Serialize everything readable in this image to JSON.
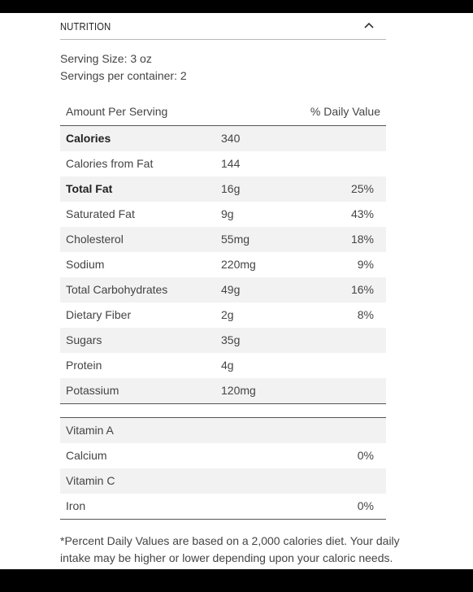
{
  "header": {
    "title": "NUTRITION",
    "toggle_icon": "chevron-up-icon"
  },
  "serving": {
    "size": "Serving Size: 3 oz",
    "per_container": "Servings per container: 2"
  },
  "table_header": {
    "amount": "Amount Per Serving",
    "daily": "% Daily Value"
  },
  "nutrients": [
    {
      "name": "Calories",
      "amount": "340",
      "dv": "",
      "bold": true
    },
    {
      "name": "Calories from Fat",
      "amount": "144",
      "dv": "",
      "bold": false
    },
    {
      "name": "Total Fat",
      "amount": "16g",
      "dv": "25%",
      "bold": true
    },
    {
      "name": "Saturated Fat",
      "amount": "9g",
      "dv": "43%",
      "bold": false
    },
    {
      "name": "Cholesterol",
      "amount": "55mg",
      "dv": "18%",
      "bold": false
    },
    {
      "name": "Sodium",
      "amount": "220mg",
      "dv": "9%",
      "bold": false
    },
    {
      "name": "Total Carbohydrates",
      "amount": "49g",
      "dv": "16%",
      "bold": false
    },
    {
      "name": "Dietary Fiber",
      "amount": "2g",
      "dv": "8%",
      "bold": false
    },
    {
      "name": "Sugars",
      "amount": "35g",
      "dv": "",
      "bold": false
    },
    {
      "name": "Protein",
      "amount": "4g",
      "dv": "",
      "bold": false
    },
    {
      "name": "Potassium",
      "amount": "120mg",
      "dv": "",
      "bold": false
    }
  ],
  "vitamins": [
    {
      "name": "Vitamin A",
      "dv": ""
    },
    {
      "name": "Calcium",
      "dv": "0%"
    },
    {
      "name": "Vitamin C",
      "dv": ""
    },
    {
      "name": "Iron",
      "dv": "0%"
    }
  ],
  "footnote": "*Percent Daily Values are based on a 2,000 calories diet. Your daily intake may be higher or lower depending upon your caloric needs."
}
